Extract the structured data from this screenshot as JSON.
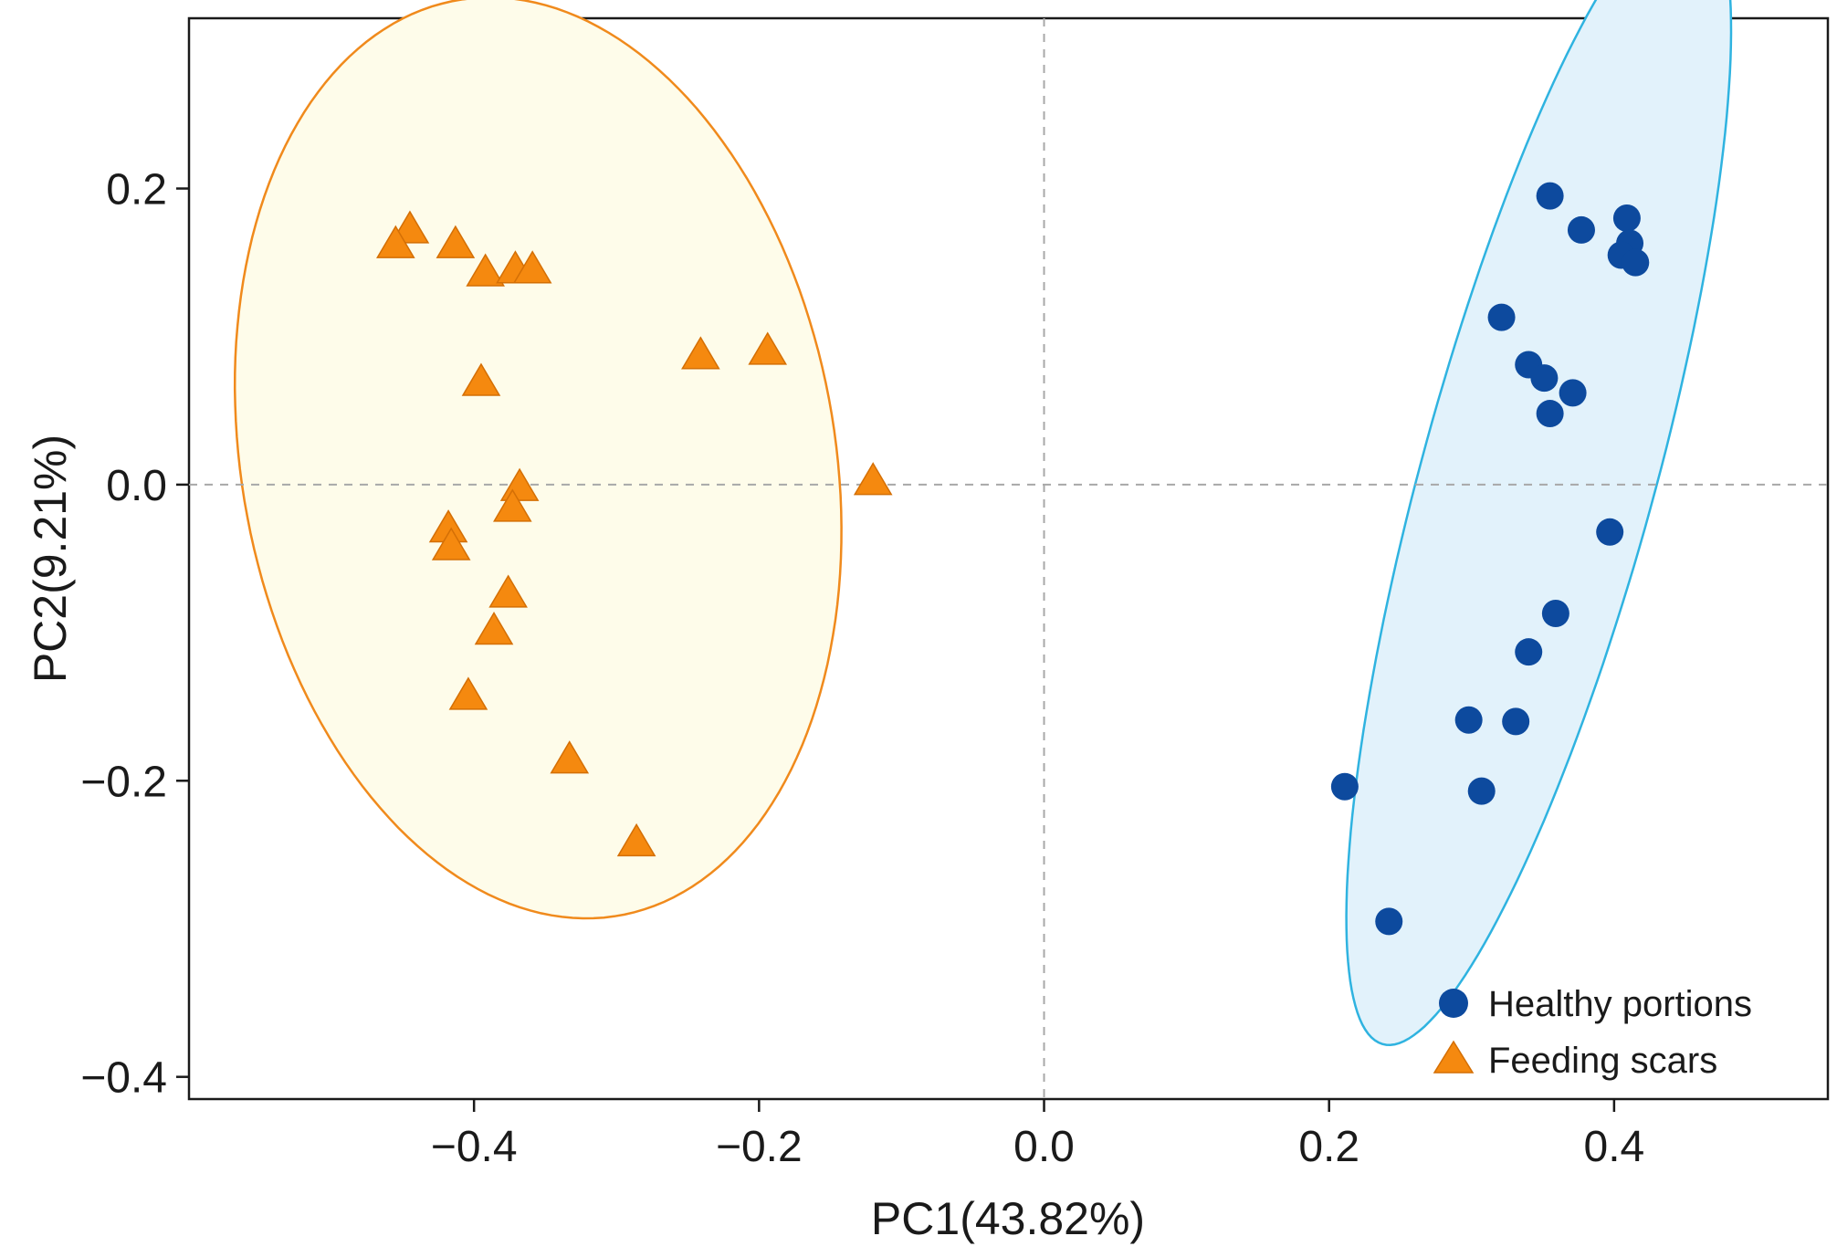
{
  "chart_data": {
    "type": "scatter",
    "title": "",
    "xlabel": "PC1(43.82%)",
    "ylabel": "PC2(9.21%)",
    "xlim": [
      -0.6,
      0.55
    ],
    "ylim": [
      -0.415,
      0.315
    ],
    "xticks": [
      -0.4,
      -0.2,
      0.0,
      0.2,
      0.4
    ],
    "xtick_labels": [
      "−0.4",
      "−0.2",
      "0.0",
      "0.2",
      "0.4"
    ],
    "yticks": [
      -0.4,
      -0.2,
      0.0,
      0.2
    ],
    "ytick_labels": [
      "−0.4",
      "−0.2",
      "0.0",
      "0.2"
    ],
    "reference_lines": {
      "x": 0.0,
      "y": 0.0,
      "style": "dashed"
    },
    "legend_position": "bottom-right",
    "series": [
      {
        "name": "Healthy portions",
        "marker": "circle",
        "color": "#0d4a9e",
        "ellipse": {
          "fill": "#e2f2fb",
          "stroke": "#2fb3e0"
        },
        "points": [
          [
            0.355,
            0.195
          ],
          [
            0.377,
            0.172
          ],
          [
            0.409,
            0.18
          ],
          [
            0.411,
            0.163
          ],
          [
            0.405,
            0.155
          ],
          [
            0.415,
            0.15
          ],
          [
            0.321,
            0.113
          ],
          [
            0.34,
            0.081
          ],
          [
            0.351,
            0.072
          ],
          [
            0.371,
            0.062
          ],
          [
            0.355,
            0.048
          ],
          [
            0.397,
            -0.032
          ],
          [
            0.359,
            -0.087
          ],
          [
            0.34,
            -0.113
          ],
          [
            0.298,
            -0.159
          ],
          [
            0.331,
            -0.16
          ],
          [
            0.211,
            -0.204
          ],
          [
            0.307,
            -0.207
          ],
          [
            0.242,
            -0.295
          ]
        ]
      },
      {
        "name": "Feeding scars",
        "marker": "triangle",
        "color": "#f5890f",
        "ellipse": {
          "fill": "#fefcea",
          "stroke": "#f08a1c"
        },
        "points": [
          [
            -0.445,
            0.172
          ],
          [
            -0.455,
            0.162
          ],
          [
            -0.413,
            0.162
          ],
          [
            -0.392,
            0.143
          ],
          [
            -0.371,
            0.145
          ],
          [
            -0.359,
            0.145
          ],
          [
            -0.395,
            0.069
          ],
          [
            -0.241,
            0.087
          ],
          [
            -0.194,
            0.09
          ],
          [
            -0.12,
            0.002
          ],
          [
            -0.368,
            -0.002
          ],
          [
            -0.373,
            -0.016
          ],
          [
            -0.418,
            -0.03
          ],
          [
            -0.416,
            -0.042
          ],
          [
            -0.376,
            -0.074
          ],
          [
            -0.386,
            -0.099
          ],
          [
            -0.404,
            -0.143
          ],
          [
            -0.333,
            -0.186
          ],
          [
            -0.286,
            -0.242
          ]
        ]
      }
    ]
  }
}
